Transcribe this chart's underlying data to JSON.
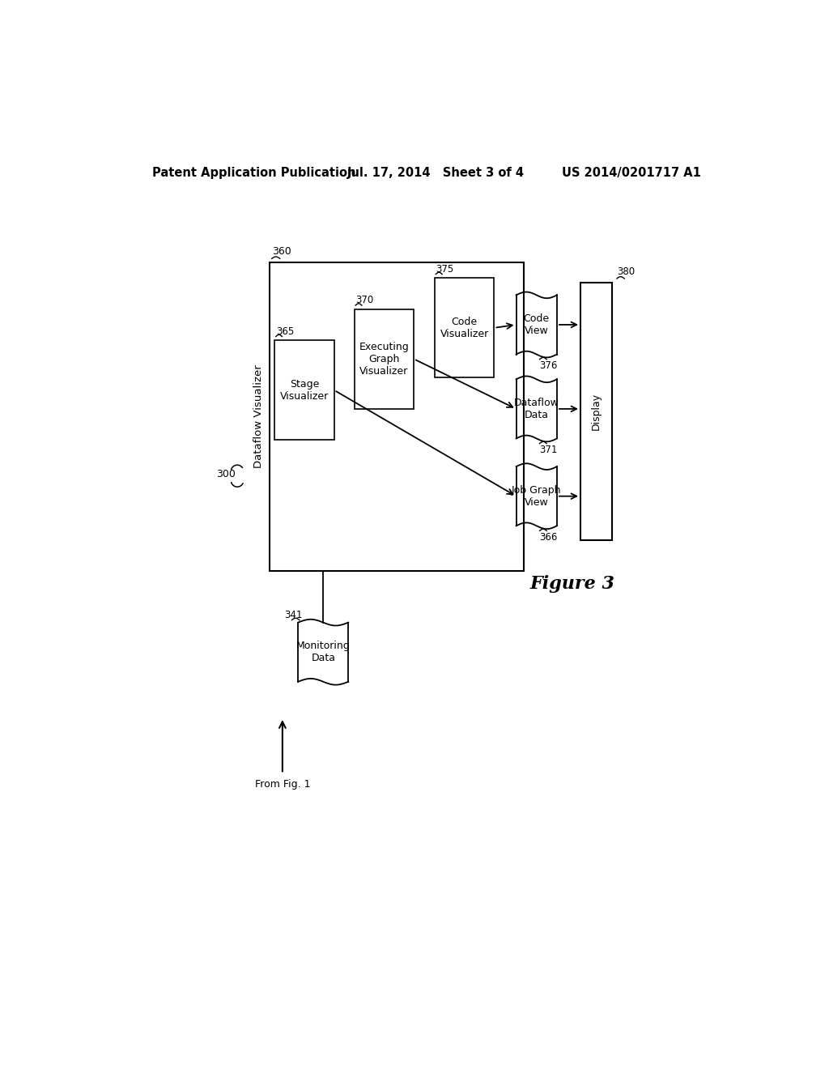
{
  "bg_color": "#ffffff",
  "header_left": "Patent Application Publication",
  "header_mid": "Jul. 17, 2014   Sheet 3 of 4",
  "header_right": "US 2014/0201717 A1",
  "figure_label": "Figure 3",
  "label_300": "300",
  "label_341": "341",
  "label_360": "360",
  "label_365": "365",
  "label_370": "370",
  "label_375": "375",
  "label_366": "366",
  "label_371": "371",
  "label_376": "376",
  "label_380": "380",
  "text_dataflow_visualizer": "Dataflow Visualizer",
  "text_display": "Display",
  "text_monitoring_data": "Monitoring\nData",
  "text_from_fig1": "From Fig. 1",
  "text_stage_vis": "Stage\nVisualizer",
  "text_exec_graph_vis": "Executing\nGraph\nVisualizer",
  "text_code_vis": "Code\nVisualizer",
  "text_job_graph_view": "Job Graph\nView",
  "text_dataflow_data": "Dataflow\nData",
  "text_code_view": "Code\nView"
}
